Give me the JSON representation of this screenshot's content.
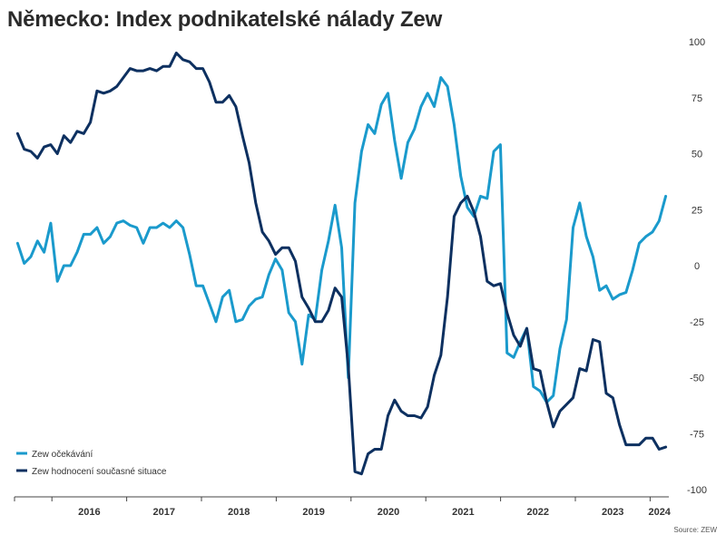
{
  "chart_data": {
    "type": "line",
    "title": "Německo: Index podnikatelské nálady Zew",
    "source": "Source: ZEW",
    "ylim": [
      -100,
      100
    ],
    "yticks": [
      "100",
      "75",
      "50",
      "25",
      "0",
      "-25",
      "-50",
      "-75",
      "-100"
    ],
    "ytick_values": [
      100,
      75,
      50,
      25,
      0,
      -25,
      -50,
      -75,
      -100
    ],
    "year_labels": [
      "2016",
      "2017",
      "2018",
      "2019",
      "2020",
      "2021",
      "2022",
      "2023",
      "2024"
    ],
    "x_start": 2015.5,
    "x_end": 2024.25,
    "legend_position": "bottom-left",
    "series": [
      {
        "name": "Zew očekávání",
        "color": "#1a9acc",
        "values": [
          10,
          1,
          4,
          11,
          6,
          19,
          -7,
          0,
          0,
          6,
          14,
          14,
          17,
          10,
          13,
          19,
          20,
          18,
          17,
          10,
          17,
          17,
          19,
          17,
          20,
          17,
          5,
          -9,
          -9,
          -17,
          -25,
          -14,
          -11,
          -25,
          -24,
          -18,
          -15,
          -14,
          -4,
          3,
          -2,
          -21,
          -25,
          -44,
          -22,
          -24,
          -2,
          11,
          27,
          8,
          -50,
          28,
          51,
          63,
          59,
          72,
          77,
          56,
          39,
          55,
          61,
          71,
          77,
          71,
          84,
          80,
          63,
          40,
          26,
          22,
          31,
          30,
          51,
          54,
          -39,
          -41,
          -34,
          -28,
          -54,
          -56,
          -61,
          -58,
          -37,
          -24,
          17,
          28,
          13,
          4,
          -11,
          -9,
          -15,
          -13,
          -12,
          -2,
          10,
          13,
          15,
          20,
          31
        ]
      },
      {
        "name": "Zew hodnocení současné situace",
        "color": "#0d3060",
        "values": [
          59,
          52,
          51,
          48,
          53,
          54,
          50,
          58,
          55,
          60,
          59,
          64,
          78,
          77,
          78,
          80,
          84,
          88,
          87,
          87,
          88,
          87,
          89,
          89,
          95,
          92,
          91,
          88,
          88,
          82,
          73,
          73,
          76,
          71,
          58,
          46,
          28,
          15,
          11,
          5,
          8,
          8,
          2,
          -14,
          -19,
          -25,
          -25,
          -20,
          -10,
          -14,
          -45,
          -92,
          -93,
          -84,
          -82,
          -82,
          -67,
          -60,
          -65,
          -67,
          -67,
          -68,
          -63,
          -49,
          -40,
          -14,
          22,
          28,
          31,
          24,
          13,
          -7,
          -9,
          -8,
          -21,
          -31,
          -36,
          -28,
          -46,
          -47,
          -61,
          -72,
          -65,
          -62,
          -59,
          -46,
          -47,
          -33,
          -34,
          -57,
          -59,
          -71,
          -80,
          -80,
          -80,
          -77,
          -77,
          -82,
          -81
        ]
      }
    ]
  }
}
